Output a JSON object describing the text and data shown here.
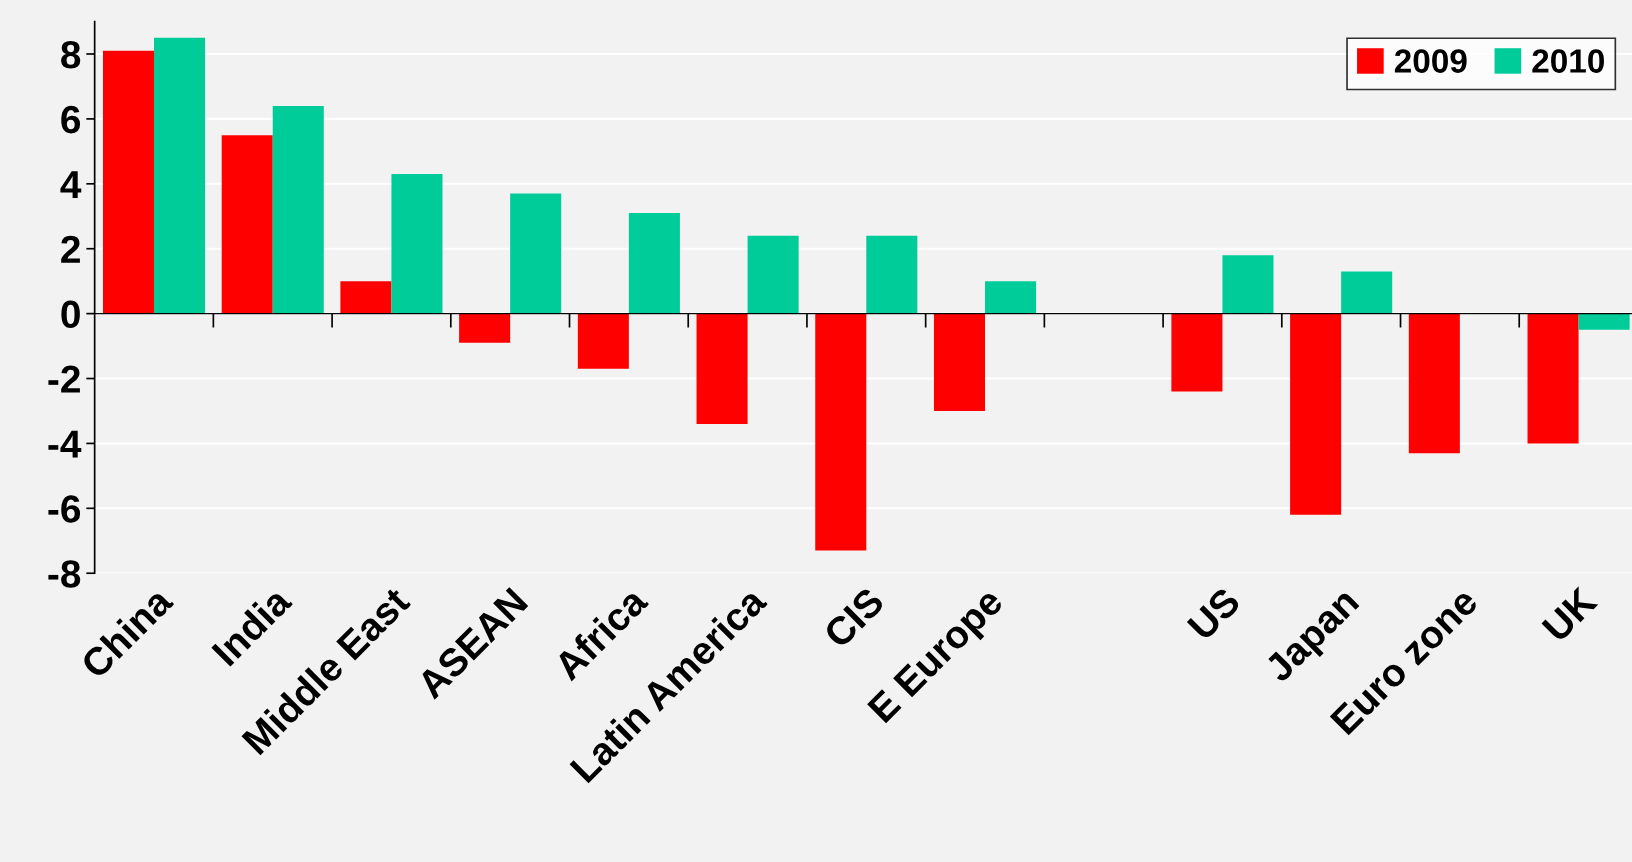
{
  "chart_data": {
    "type": "bar",
    "categories": [
      "China",
      "India",
      "Middle East",
      "ASEAN",
      "Africa",
      "Latin America",
      "CIS",
      "E Europe",
      null,
      "US",
      "Japan",
      "Euro zone",
      "UK"
    ],
    "series": [
      {
        "name": "2009",
        "color": "#ff0000",
        "values": [
          8.1,
          5.5,
          1.0,
          -0.9,
          -1.7,
          -3.4,
          -7.3,
          -3.0,
          null,
          -2.4,
          -6.2,
          -4.3,
          -4.0
        ]
      },
      {
        "name": "2010",
        "color": "#00cc99",
        "values": [
          8.5,
          6.4,
          4.3,
          3.7,
          3.1,
          2.4,
          2.4,
          1.0,
          null,
          1.8,
          1.3,
          0,
          -0.5
        ]
      }
    ],
    "ylim": [
      -8,
      9
    ],
    "yticks": [
      -8,
      -6,
      -4,
      -2,
      0,
      2,
      4,
      6,
      8
    ],
    "grid": "y",
    "legend": "top right"
  }
}
